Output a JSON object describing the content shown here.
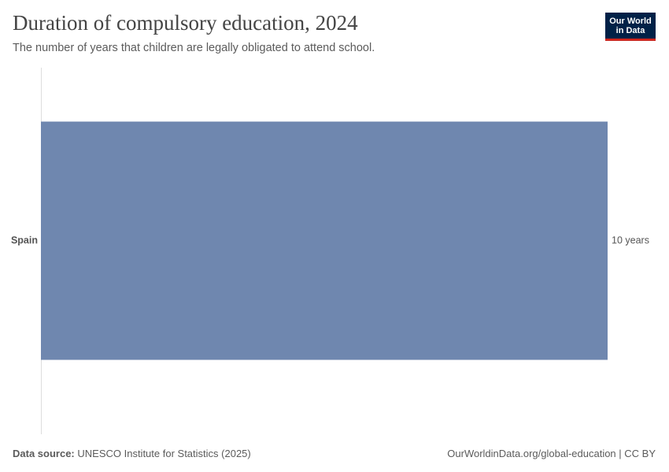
{
  "chart_data": {
    "type": "bar",
    "orientation": "horizontal",
    "title": "Duration of compulsory education, 2024",
    "subtitle": "The number of years that children are legally obligated to attend school.",
    "logo": [
      "Our World",
      "in Data"
    ],
    "categories": [
      "Spain"
    ],
    "values": [
      10
    ],
    "value_labels": [
      "10 years"
    ],
    "color": "#6f87af",
    "source_label": "Data source:",
    "source": "UNESCO Institute for Statistics (2025)",
    "credit": "OurWorldinData.org/global-education | CC BY"
  }
}
